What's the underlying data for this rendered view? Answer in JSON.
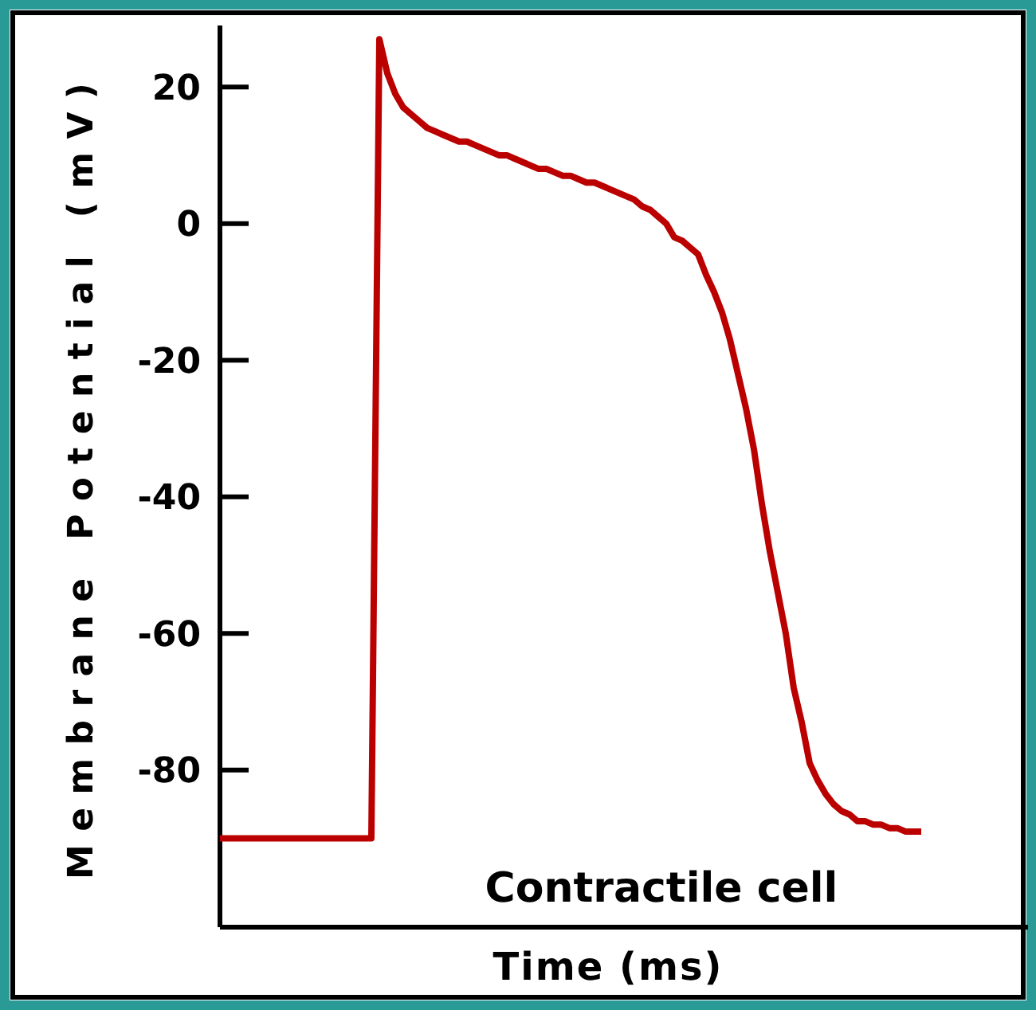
{
  "chart_data": {
    "type": "line",
    "xlabel": "Time (ms)",
    "ylabel": "Membrane Potential (mV)",
    "annotations": [
      "Contractile cell"
    ],
    "categories": [
      null,
      null,
      null,
      null,
      null,
      null,
      null,
      null,
      null,
      null,
      null,
      null,
      null,
      null,
      null,
      null,
      null,
      null,
      null,
      null,
      null,
      null,
      null,
      null,
      null,
      null,
      null,
      null,
      null,
      null,
      null,
      null,
      null,
      null,
      null,
      null,
      null,
      null,
      null,
      null,
      null,
      null,
      null,
      null,
      null,
      null,
      null,
      null,
      null,
      null,
      null,
      null,
      null,
      null,
      null,
      null,
      null,
      null,
      null,
      null,
      null,
      null,
      null,
      null,
      null,
      null,
      null,
      null,
      null,
      null,
      null,
      null,
      null,
      null,
      null,
      null,
      null,
      null,
      null,
      null,
      null,
      null,
      null,
      null,
      null,
      null,
      null,
      null,
      null,
      null,
      null,
      null,
      null,
      null,
      null,
      null,
      null,
      null,
      null,
      null,
      null,
      null
    ],
    "series": [
      {
        "color": "#bb0000",
        "values": [
          -90,
          -90,
          -90,
          -90,
          -90,
          -90,
          -90,
          -90,
          -90,
          -90,
          -90,
          -90,
          -90,
          -90,
          -90,
          -90,
          -90,
          -90,
          -90,
          -90,
          27,
          22,
          19,
          17,
          16,
          15,
          14,
          13.5,
          13,
          12.5,
          12,
          12,
          11.5,
          11,
          10.5,
          10,
          10,
          9.5,
          9,
          8.5,
          8,
          8,
          7.5,
          7,
          7,
          6.5,
          6,
          6,
          5.5,
          5,
          4.5,
          4,
          3.5,
          2.5,
          2,
          1,
          0,
          -2,
          -2.5,
          -3.5,
          -4.5,
          -7.5,
          -10,
          -13,
          -17,
          -22,
          -27,
          -33,
          -41,
          -48,
          -54,
          -60,
          -68,
          -73,
          -79,
          -81.5,
          -83.5,
          -85,
          -86,
          -86.5,
          -87.5,
          -87.5,
          -88,
          -88,
          -88.5,
          -88.5,
          -89,
          -89,
          -89,
          null,
          null,
          null,
          null,
          null,
          null,
          null,
          null,
          null,
          null,
          null,
          null,
          null
        ]
      }
    ],
    "ylim": [
      -103,
      29
    ],
    "yticks": [
      20,
      0,
      -20,
      -40,
      -60,
      -80
    ],
    "tick_labels": "y",
    "grid": false,
    "marker": "none",
    "line_style": "solid"
  }
}
